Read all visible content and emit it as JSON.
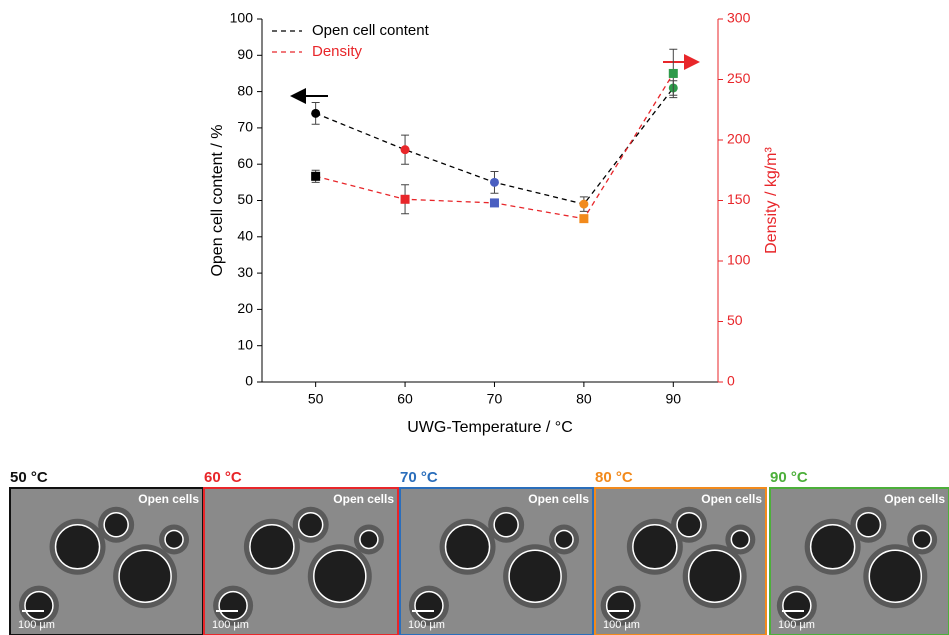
{
  "chart_data": {
    "type": "line",
    "x_label": "UWG-Temperature / °C",
    "y_label": "Open cell content / %",
    "y2_label": "Density / kg/m³",
    "x": [
      50,
      60,
      70,
      80,
      90
    ],
    "xlim": [
      44,
      95
    ],
    "xticks": [
      50,
      60,
      70,
      80,
      90
    ],
    "ylim": [
      0,
      100
    ],
    "yticks": [
      0,
      10,
      20,
      30,
      40,
      50,
      60,
      70,
      80,
      90,
      100
    ],
    "y2lim": [
      0,
      300
    ],
    "y2ticks": [
      0,
      50,
      100,
      150,
      200,
      250,
      300
    ],
    "y2_color": "#e8262a",
    "legend": "upper left",
    "series": [
      {
        "name": "Open cell content",
        "color": "#000000",
        "marker": "circle",
        "axis": "y",
        "values": [
          74,
          64,
          55,
          49,
          81
        ],
        "errors": [
          3,
          4,
          3,
          2,
          2
        ],
        "point_colors": [
          "#000000",
          "#e8262a",
          "#4a5fc1",
          "#f28a1c",
          "#2e9a4a"
        ]
      },
      {
        "name": "Density",
        "color": "#e8262a",
        "marker": "square",
        "axis": "y2",
        "values": [
          170,
          151,
          148,
          135,
          255
        ],
        "errors": [
          5,
          12,
          2,
          3,
          20
        ],
        "point_colors": [
          "#000000",
          "#e8262a",
          "#4a5fc1",
          "#f28a1c",
          "#2e9a4a"
        ]
      }
    ]
  },
  "panels": [
    {
      "label": "50 °C",
      "color": "#111111",
      "caption": "Open cells",
      "scale": "100 µm"
    },
    {
      "label": "60 °C",
      "color": "#e8262a",
      "caption": "Open cells",
      "scale": "100 µm"
    },
    {
      "label": "70 °C",
      "color": "#2a6ebb",
      "caption": "Open cells",
      "scale": "100 µm"
    },
    {
      "label": "80 °C",
      "color": "#f28a1c",
      "caption": "Open cells",
      "scale": "100 µm"
    },
    {
      "label": "90 °C",
      "color": "#4caf3a",
      "caption": "Open cells",
      "scale": "100 µm"
    }
  ]
}
